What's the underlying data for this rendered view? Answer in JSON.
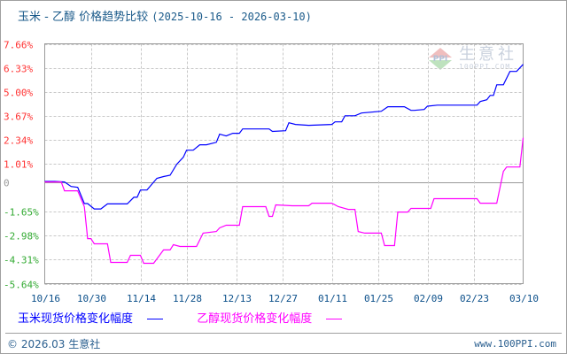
{
  "title": "玉米 - 乙醇 价格趋势比较",
  "date_range": "(2025-10-16 - 2026-03-10)",
  "colors": {
    "corn": "#0000ff",
    "ethanol": "#ff00ff",
    "positive_tick": "#ff3333",
    "negative_tick": "#33aa33",
    "zero_tick": "#999999",
    "x_tick": "#0b4f8a"
  },
  "watermark": {
    "brand": "生意社",
    "site": "100PPI.COM",
    "logo": "PPI"
  },
  "legend": [
    {
      "label": "玉米现货价格变化幅度",
      "color": "#0000ff"
    },
    {
      "label": "乙醇现货价格变化幅度",
      "color": "#ff00ff"
    }
  ],
  "footer": {
    "copyright": "© 2026.03 生意社",
    "site": "www.100PPI.com"
  },
  "chart_data": {
    "type": "line",
    "title": "玉米 - 乙醇 价格趋势比较 (2025-10-16 - 2026-03-10)",
    "x_range": [
      "2025-10-16",
      "2026-03-10"
    ],
    "ylim": [
      -5.64,
      7.66
    ],
    "grid": true,
    "y_ticks": [
      "7.66%",
      "6.33%",
      "5.00%",
      "3.67%",
      "2.34%",
      "1.01%",
      "0",
      "-1.65%",
      "-2.98%",
      "-4.31%",
      "-5.64%"
    ],
    "y_tick_values": [
      7.66,
      6.33,
      5.0,
      3.67,
      2.34,
      1.01,
      0,
      -1.65,
      -2.98,
      -4.31,
      -5.64
    ],
    "x_ticks": [
      "10/16",
      "10/30",
      "11/14",
      "11/28",
      "12/13",
      "12/27",
      "01/11",
      "01/25",
      "02/09",
      "02/23",
      "03/10"
    ],
    "x_tick_dates": [
      "2025-10-16",
      "2025-10-30",
      "2025-11-14",
      "2025-11-28",
      "2025-12-13",
      "2025-12-27",
      "2026-01-11",
      "2026-01-25",
      "2026-02-09",
      "2026-02-23",
      "2026-03-10"
    ],
    "legend_position": "bottom",
    "series": [
      {
        "name": "玉米现货价格变化幅度",
        "color": "#0000ff",
        "points": [
          [
            "2025-10-16",
            0.03
          ],
          [
            "2025-10-19",
            0.03
          ],
          [
            "2025-10-22",
            0
          ],
          [
            "2025-10-24",
            -0.25
          ],
          [
            "2025-10-26",
            -0.3
          ],
          [
            "2025-10-28",
            -1.2
          ],
          [
            "2025-10-29",
            -1.2
          ],
          [
            "2025-10-31",
            -1.5
          ],
          [
            "2025-11-02",
            -1.5
          ],
          [
            "2025-11-04",
            -1.22
          ],
          [
            "2025-11-10",
            -1.22
          ],
          [
            "2025-11-12",
            -0.85
          ],
          [
            "2025-11-13",
            -0.85
          ],
          [
            "2025-11-14",
            -0.45
          ],
          [
            "2025-11-16",
            -0.45
          ],
          [
            "2025-11-19",
            0.2
          ],
          [
            "2025-11-21",
            0.3
          ],
          [
            "2025-11-23",
            0.37
          ],
          [
            "2025-11-25",
            0.98
          ],
          [
            "2025-11-27",
            1.37
          ],
          [
            "2025-11-28",
            1.76
          ],
          [
            "2025-11-30",
            1.76
          ],
          [
            "2025-12-02",
            2.06
          ],
          [
            "2025-12-04",
            2.06
          ],
          [
            "2025-12-07",
            2.2
          ],
          [
            "2025-12-08",
            2.65
          ],
          [
            "2025-12-10",
            2.55
          ],
          [
            "2025-12-12",
            2.7
          ],
          [
            "2025-12-14",
            2.7
          ],
          [
            "2025-12-15",
            2.94
          ],
          [
            "2025-12-23",
            2.94
          ],
          [
            "2025-12-24",
            2.8
          ],
          [
            "2025-12-28",
            2.84
          ],
          [
            "2025-12-29",
            3.28
          ],
          [
            "2025-12-31",
            3.19
          ],
          [
            "2026-01-04",
            3.14
          ],
          [
            "2026-01-11",
            3.19
          ],
          [
            "2026-01-12",
            3.33
          ],
          [
            "2026-01-14",
            3.33
          ],
          [
            "2026-01-15",
            3.67
          ],
          [
            "2026-01-18",
            3.67
          ],
          [
            "2026-01-20",
            3.82
          ],
          [
            "2026-01-26",
            3.92
          ],
          [
            "2026-01-28",
            4.17
          ],
          [
            "2026-02-02",
            4.17
          ],
          [
            "2026-02-04",
            3.97
          ],
          [
            "2026-02-05",
            3.97
          ],
          [
            "2026-02-08",
            4.02
          ],
          [
            "2026-02-09",
            4.2
          ],
          [
            "2026-02-12",
            4.26
          ],
          [
            "2026-02-24",
            4.26
          ],
          [
            "2026-02-25",
            4.46
          ],
          [
            "2026-02-27",
            4.56
          ],
          [
            "2026-02-28",
            4.8
          ],
          [
            "2026-03-01",
            4.8
          ],
          [
            "2026-03-02",
            5.39
          ],
          [
            "2026-03-04",
            5.39
          ],
          [
            "2026-03-06",
            6.13
          ],
          [
            "2026-03-08",
            6.13
          ],
          [
            "2026-03-10",
            6.52
          ]
        ]
      },
      {
        "name": "乙醇现货价格变化幅度",
        "color": "#ff00ff",
        "points": [
          [
            "2025-10-16",
            0
          ],
          [
            "2025-10-21",
            0
          ],
          [
            "2025-10-22",
            -0.49
          ],
          [
            "2025-10-26",
            -0.49
          ],
          [
            "2025-10-28",
            -1.37
          ],
          [
            "2025-10-29",
            -3.14
          ],
          [
            "2025-10-30",
            -3.14
          ],
          [
            "2025-10-31",
            -3.43
          ],
          [
            "2025-11-04",
            -3.43
          ],
          [
            "2025-11-05",
            -4.46
          ],
          [
            "2025-11-10",
            -4.46
          ],
          [
            "2025-11-11",
            -4.07
          ],
          [
            "2025-11-14",
            -4.07
          ],
          [
            "2025-11-15",
            -4.51
          ],
          [
            "2025-11-18",
            -4.51
          ],
          [
            "2025-11-21",
            -3.77
          ],
          [
            "2025-11-23",
            -3.77
          ],
          [
            "2025-11-24",
            -3.48
          ],
          [
            "2025-11-26",
            -3.58
          ],
          [
            "2025-12-01",
            -3.58
          ],
          [
            "2025-12-03",
            -2.84
          ],
          [
            "2025-12-07",
            -2.75
          ],
          [
            "2025-12-08",
            -2.55
          ],
          [
            "2025-12-10",
            -2.4
          ],
          [
            "2025-12-14",
            -2.4
          ],
          [
            "2025-12-15",
            -1.37
          ],
          [
            "2025-12-22",
            -1.37
          ],
          [
            "2025-12-23",
            -1.91
          ],
          [
            "2025-12-24",
            -1.91
          ],
          [
            "2025-12-25",
            -1.27
          ],
          [
            "2025-12-30",
            -1.32
          ],
          [
            "2026-01-04",
            -1.32
          ],
          [
            "2026-01-05",
            -1.18
          ],
          [
            "2026-01-11",
            -1.18
          ],
          [
            "2026-01-13",
            -1.37
          ],
          [
            "2026-01-16",
            -1.52
          ],
          [
            "2026-01-18",
            -1.52
          ],
          [
            "2026-01-19",
            -2.75
          ],
          [
            "2026-01-21",
            -2.84
          ],
          [
            "2026-01-26",
            -2.84
          ],
          [
            "2026-01-27",
            -3.53
          ],
          [
            "2026-01-30",
            -3.53
          ],
          [
            "2026-01-31",
            -1.67
          ],
          [
            "2026-02-03",
            -1.67
          ],
          [
            "2026-02-04",
            -1.47
          ],
          [
            "2026-02-10",
            -1.47
          ],
          [
            "2026-02-11",
            -0.93
          ],
          [
            "2026-02-24",
            -0.93
          ],
          [
            "2026-02-25",
            -1.18
          ],
          [
            "2026-03-02",
            -1.18
          ],
          [
            "2026-03-04",
            0.59
          ],
          [
            "2026-03-05",
            0.83
          ],
          [
            "2026-03-09",
            0.83
          ],
          [
            "2026-03-10",
            2.45
          ]
        ]
      }
    ]
  }
}
